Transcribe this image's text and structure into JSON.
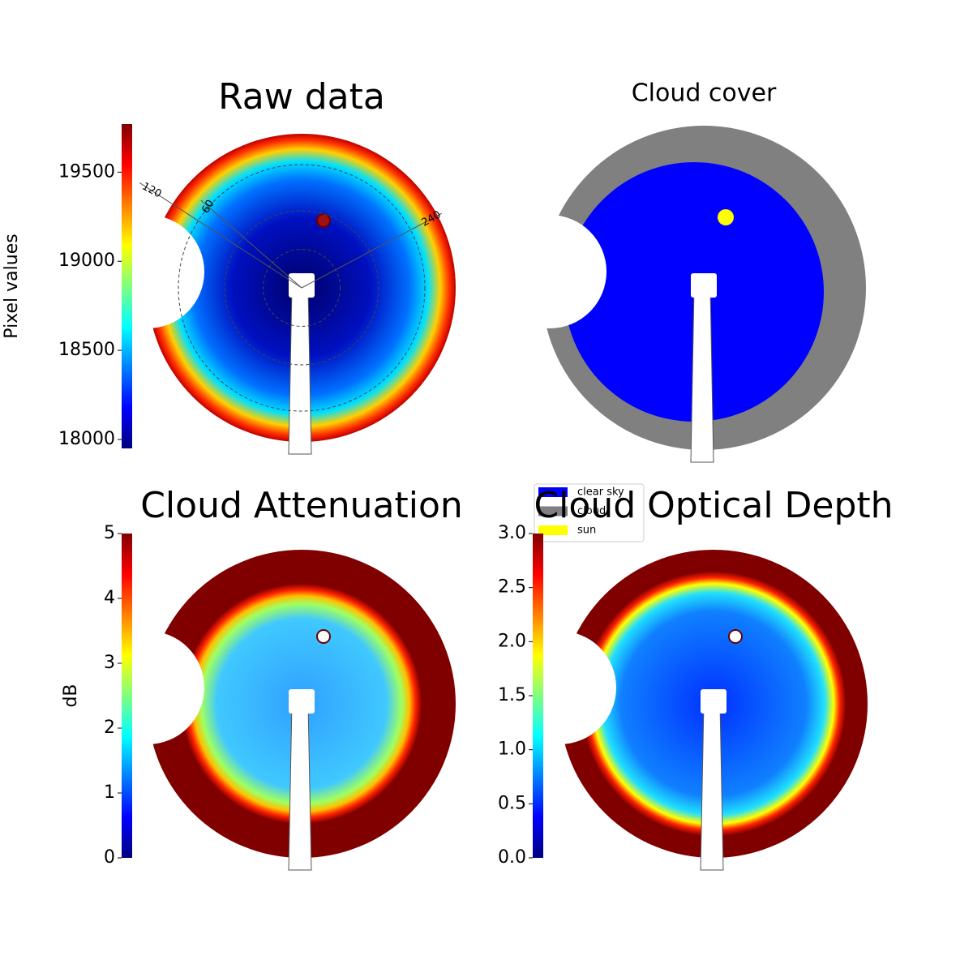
{
  "chart_data": [
    {
      "type": "image",
      "title": "Raw data",
      "colorbar_label": "Pixel values",
      "colormap": "jet",
      "ylim": [
        17950,
        19770
      ],
      "yticks": [
        18000,
        18500,
        19000,
        19500
      ],
      "annotations": [
        "120",
        "60",
        "240"
      ]
    },
    {
      "type": "image",
      "title": "Cloud cover",
      "series": [
        {
          "name": "clear sky",
          "color": "#0000ff"
        },
        {
          "name": "cloud",
          "color": "#808080"
        },
        {
          "name": "sun",
          "color": "#ffff00"
        }
      ]
    },
    {
      "type": "image",
      "title": "Cloud Attenuation",
      "colorbar_label": "dB",
      "colormap": "jet",
      "ylim": [
        0,
        5
      ],
      "yticks": [
        0,
        1,
        2,
        3,
        4,
        5
      ]
    },
    {
      "type": "image",
      "title": "Cloud Optical Depth",
      "colormap": "jet",
      "ylim": [
        0,
        3
      ],
      "yticks": [
        {
          "value": 0,
          "label": "0.0"
        },
        {
          "value": 0.5,
          "label": "0.5"
        },
        {
          "value": 1,
          "label": "1.0"
        },
        {
          "value": 1.5,
          "label": "1.5"
        },
        {
          "value": 2,
          "label": "2.0"
        },
        {
          "value": 2.5,
          "label": "2.5"
        },
        {
          "value": 3,
          "label": "3.0"
        }
      ]
    }
  ]
}
